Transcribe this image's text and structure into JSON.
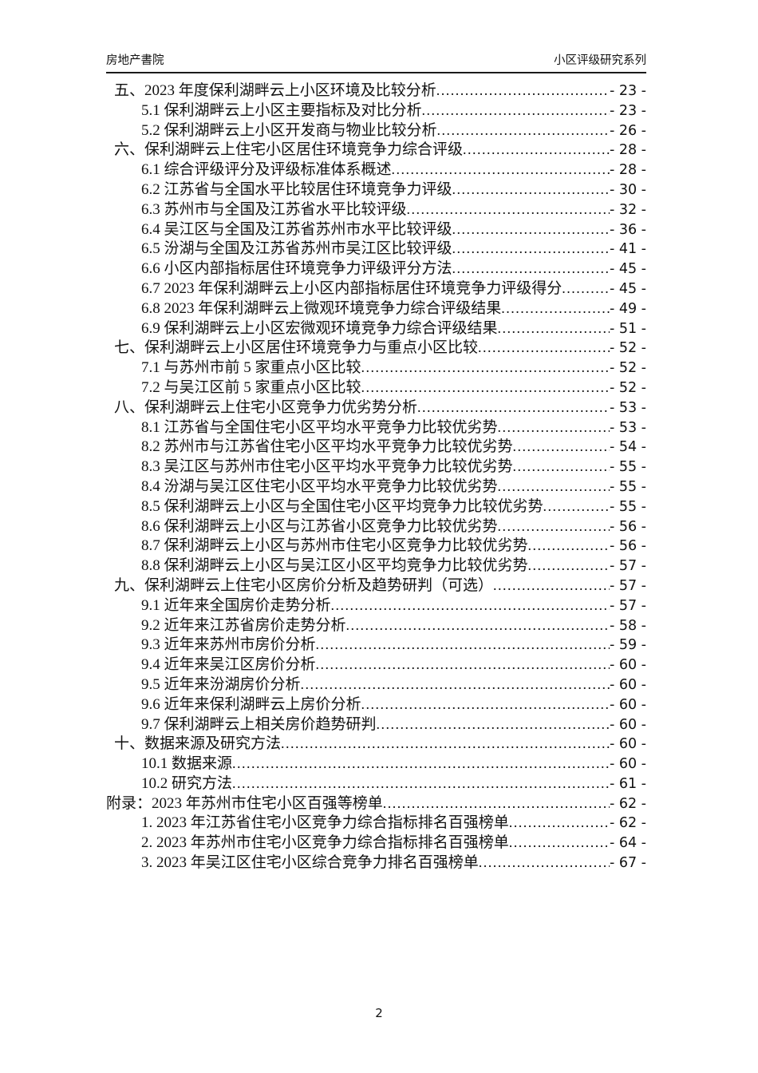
{
  "header": {
    "left": "房地产書院",
    "right": "小区评级研究系列"
  },
  "footer": {
    "page_number": "2"
  },
  "toc": {
    "entries": [
      {
        "level": 1,
        "title": "五、2023 年度保利湖畔云上小区环境及比较分析",
        "page": "- 23 -"
      },
      {
        "level": 2,
        "title": "5.1 保利湖畔云上小区主要指标及对比分析",
        "page": "- 23 -"
      },
      {
        "level": 2,
        "title": "5.2 保利湖畔云上小区开发商与物业比较分析",
        "page": "- 26 -"
      },
      {
        "level": 1,
        "title": "六、保利湖畔云上住宅小区居住环境竞争力综合评级",
        "page": "- 28 -"
      },
      {
        "level": 2,
        "title": "6.1 综合评级评分及评级标准体系概述",
        "page": "- 28 -"
      },
      {
        "level": 2,
        "title": "6.2 江苏省与全国水平比较居住环境竞争力评级",
        "page": "- 30 -"
      },
      {
        "level": 2,
        "title": "6.3 苏州市与全国及江苏省水平比较评级",
        "page": "- 32 -"
      },
      {
        "level": 2,
        "title": "6.4 吴江区与全国及江苏省苏州市水平比较评级",
        "page": "- 36 -"
      },
      {
        "level": 2,
        "title": "6.5 汾湖与全国及江苏省苏州市吴江区比较评级",
        "page": "- 41 -"
      },
      {
        "level": 2,
        "title": "6.6 小区内部指标居住环境竞争力评级评分方法",
        "page": "- 45 -"
      },
      {
        "level": 2,
        "title": "6.7 2023 年保利湖畔云上小区内部指标居住环境竞争力评级得分",
        "page": "- 45 -"
      },
      {
        "level": 2,
        "title": "6.8 2023 年保利湖畔云上微观环境竞争力综合评级结果",
        "page": "- 49 -"
      },
      {
        "level": 2,
        "title": "6.9 保利湖畔云上小区宏微观环境竞争力综合评级结果",
        "page": "- 51 -"
      },
      {
        "level": 1,
        "title": "七、保利湖畔云上小区居住环境竞争力与重点小区比较",
        "page": "- 52 -"
      },
      {
        "level": 2,
        "title": "7.1 与苏州市前 5 家重点小区比较",
        "page": "- 52 -"
      },
      {
        "level": 2,
        "title": "7.2 与吴江区前 5 家重点小区比较",
        "page": "- 52 -"
      },
      {
        "level": 1,
        "title": "八、保利湖畔云上住宅小区竞争力优劣势分析",
        "page": "- 53 -"
      },
      {
        "level": 2,
        "title": "8.1 江苏省与全国住宅小区平均水平竞争力比较优劣势",
        "page": "- 53 -"
      },
      {
        "level": 2,
        "title": "8.2 苏州市与江苏省住宅小区平均水平竞争力比较优劣势",
        "page": "- 54 -"
      },
      {
        "level": 2,
        "title": "8.3 吴江区与苏州市住宅小区平均水平竞争力比较优劣势",
        "page": "- 55 -"
      },
      {
        "level": 2,
        "title": "8.4 汾湖与吴江区住宅小区平均水平竞争力比较优劣势",
        "page": "- 55 -"
      },
      {
        "level": 2,
        "title": "8.5 保利湖畔云上小区与全国住宅小区平均竞争力比较优劣势",
        "page": "- 55 -"
      },
      {
        "level": 2,
        "title": "8.6 保利湖畔云上小区与江苏省小区竞争力比较优劣势",
        "page": "- 56 -"
      },
      {
        "level": 2,
        "title": "8.7 保利湖畔云上小区与苏州市住宅小区竞争力比较优劣势",
        "page": "- 56 -"
      },
      {
        "level": 2,
        "title": "8.8 保利湖畔云上小区与吴江区小区平均竞争力比较优劣势",
        "page": "- 57 -"
      },
      {
        "level": 1,
        "title": "九、保利湖畔云上住宅小区房价分析及趋势研判（可选）",
        "page": "- 57 -"
      },
      {
        "level": 2,
        "title": "9.1 近年来全国房价走势分析",
        "page": "- 57 -"
      },
      {
        "level": 2,
        "title": "9.2 近年来江苏省房价走势分析",
        "page": "- 58 -"
      },
      {
        "level": 2,
        "title": "9.3 近年来苏州市房价分析",
        "page": "- 59 -"
      },
      {
        "level": 2,
        "title": "9.4 近年来吴江区房价分析",
        "page": "- 60 -"
      },
      {
        "level": 2,
        "title": "9.5 近年来汾湖房价分析",
        "page": "- 60 -"
      },
      {
        "level": 2,
        "title": "9.6 近年来保利湖畔云上房价分析",
        "page": "- 60 -"
      },
      {
        "level": 2,
        "title": "9.7 保利湖畔云上相关房价趋势研判",
        "page": "- 60 -"
      },
      {
        "level": 1,
        "title": "十、数据来源及研究方法",
        "page": "- 60 -"
      },
      {
        "level": 2,
        "title": "10.1 数据来源",
        "page": "- 60 -"
      },
      {
        "level": 2,
        "title": "10.2 研究方法",
        "page": "- 61 -"
      },
      {
        "level": 0,
        "title": "附录：2023 年苏州市住宅小区百强等榜单",
        "page": "- 62 -"
      },
      {
        "level": 2,
        "title": "1. 2023 年江苏省住宅小区竞争力综合指标排名百强榜单",
        "page": "- 62 -"
      },
      {
        "level": 2,
        "title": "2. 2023 年苏州市住宅小区竞争力综合指标排名百强榜单",
        "page": "- 64 -"
      },
      {
        "level": 2,
        "title": "3. 2023 年吴江区住宅小区综合竞争力排名百强榜单",
        "page": "- 67 -"
      }
    ]
  }
}
